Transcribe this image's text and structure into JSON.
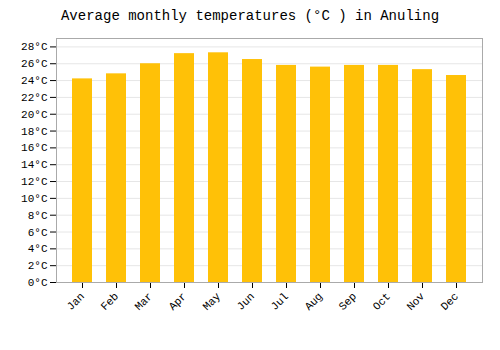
{
  "chart_data": {
    "type": "bar",
    "title": "Average monthly temperatures (°C ) in Anuling",
    "categories": [
      "Jan",
      "Feb",
      "Mar",
      "Apr",
      "May",
      "Jun",
      "Jul",
      "Aug",
      "Sep",
      "Oct",
      "Nov",
      "Dec"
    ],
    "values": [
      24.2,
      24.8,
      26.0,
      27.2,
      27.3,
      26.5,
      25.8,
      25.6,
      25.8,
      25.8,
      25.3,
      24.6
    ],
    "color": "#FFC107",
    "ylim": [
      0,
      29
    ],
    "yticks": [
      {
        "value": 0,
        "label": "0°C"
      },
      {
        "value": 2,
        "label": "2°C"
      },
      {
        "value": 4,
        "label": "4°C"
      },
      {
        "value": 6,
        "label": "6°C"
      },
      {
        "value": 8,
        "label": "8°C"
      },
      {
        "value": 10,
        "label": "10°C"
      },
      {
        "value": 12,
        "label": "12°C"
      },
      {
        "value": 14,
        "label": "14°C"
      },
      {
        "value": 16,
        "label": "16°C"
      },
      {
        "value": 18,
        "label": "18°C"
      },
      {
        "value": 20,
        "label": "20°C"
      },
      {
        "value": 22,
        "label": "22°C"
      },
      {
        "value": 24,
        "label": "24°C"
      },
      {
        "value": 26,
        "label": "26°C"
      },
      {
        "value": 28,
        "label": "28°C"
      }
    ],
    "grid": true
  }
}
